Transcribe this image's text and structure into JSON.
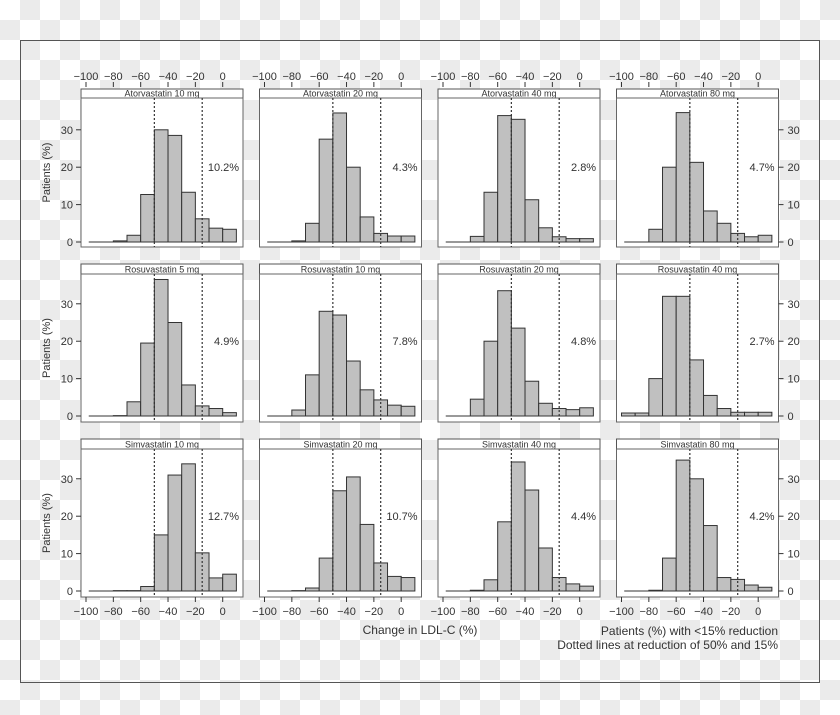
{
  "colors": {
    "bar_fill": "#c0c0c0",
    "bar_stroke": "#333333",
    "text": "#333333",
    "frame": "#555555"
  },
  "chart_data": {
    "type": "bar",
    "subtype": "histogram-panels",
    "xlabel": "Change in LDL-C (%)",
    "ylabel": "Patients (%)",
    "xlim": [
      -104,
      15
    ],
    "ylim": [
      0,
      38
    ],
    "x_ticks": [
      -100,
      -80,
      -60,
      -40,
      -20,
      0
    ],
    "y_ticks": [
      0,
      10,
      20,
      30
    ],
    "bin_width": 10,
    "bin_left_edges": [
      -100,
      -90,
      -80,
      -70,
      -60,
      -50,
      -40,
      -30,
      -20,
      -10,
      0
    ],
    "reference_lines": [
      -50,
      -15
    ],
    "notes": [
      "Patients (%) with <15% reduction",
      "Dotted lines at reduction of 50% and 15%"
    ],
    "panels": [
      {
        "title": "Atorvastatin 10 mg",
        "annotation": "10.2%",
        "values": [
          0,
          0,
          0.3,
          1.8,
          12.7,
          30,
          28.5,
          13.3,
          6.2,
          3.7,
          3.4
        ]
      },
      {
        "title": "Atorvastatin 20 mg",
        "annotation": "4.3%",
        "values": [
          0,
          0,
          0.3,
          5,
          27.5,
          34.5,
          20,
          6.7,
          2.3,
          1.6,
          1.6
        ]
      },
      {
        "title": "Atorvastatin 40 mg",
        "annotation": "2.8%",
        "values": [
          0,
          0,
          1.5,
          13.3,
          33.8,
          32.8,
          11.3,
          3.8,
          1.4,
          0.9,
          0.9
        ]
      },
      {
        "title": "Atorvastatin 80 mg",
        "annotation": "4.7%",
        "values": [
          0,
          0,
          3.4,
          20,
          34.6,
          21.3,
          8.3,
          5,
          2.3,
          1.4,
          1.8
        ]
      },
      {
        "title": "Rosuvastatin 5 mg",
        "annotation": "4.9%",
        "values": [
          0,
          0,
          0.1,
          3.8,
          19.5,
          36.5,
          25,
          8.3,
          2.7,
          2.0,
          0.9
        ]
      },
      {
        "title": "Rosuvastatin 10 mg",
        "annotation": "7.8%",
        "values": [
          0,
          0,
          1.6,
          11,
          28,
          27,
          14.7,
          7,
          4.3,
          2.9,
          2.6
        ]
      },
      {
        "title": "Rosuvastatin 20 mg",
        "annotation": "4.8%",
        "values": [
          0,
          0,
          4.5,
          20,
          33.5,
          23.5,
          9.3,
          3.4,
          2.0,
          1.7,
          2.2
        ]
      },
      {
        "title": "Rosuvastatin 40 mg",
        "annotation": "2.7%",
        "values": [
          0.8,
          0.8,
          10,
          32,
          32,
          15,
          5.5,
          2,
          1,
          1,
          1
        ]
      },
      {
        "title": "Simvastatin 10 mg",
        "annotation": "12.7%",
        "values": [
          0,
          0,
          0.1,
          0.1,
          1.2,
          15,
          31,
          34,
          10.2,
          3.5,
          4.5
        ]
      },
      {
        "title": "Simvastatin 20 mg",
        "annotation": "10.7%",
        "values": [
          0,
          0,
          0.1,
          0.8,
          8.8,
          26.8,
          30.5,
          17.8,
          7.5,
          3.9,
          3.6
        ]
      },
      {
        "title": "Simvastatin 40 mg",
        "annotation": "4.4%",
        "values": [
          0,
          0,
          0.2,
          3,
          18.5,
          34.5,
          27,
          11.5,
          3.6,
          1.9,
          1.3
        ]
      },
      {
        "title": "Simvastatin 80 mg",
        "annotation": "4.2%",
        "values": [
          0,
          0,
          0.2,
          8.8,
          35,
          30,
          17.5,
          3.6,
          3.1,
          1.6,
          1.0
        ]
      }
    ]
  }
}
